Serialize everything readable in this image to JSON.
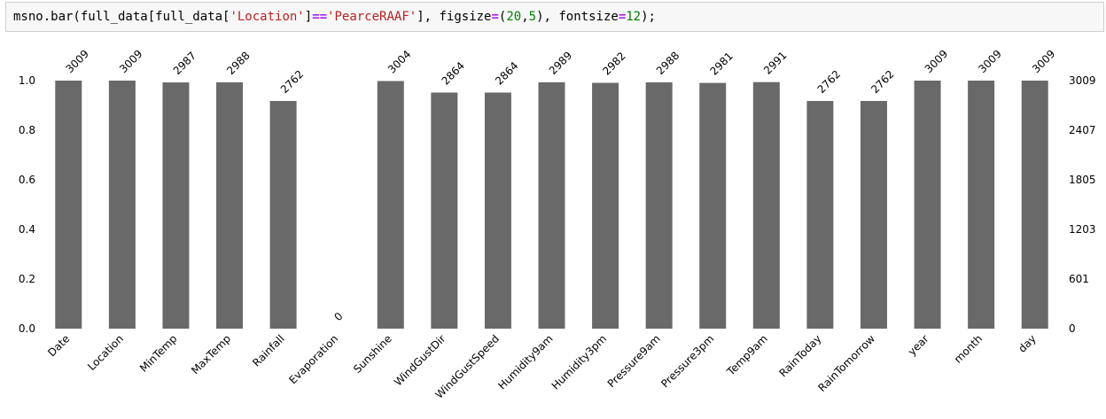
{
  "code_cell": {
    "parts": [
      {
        "text": "msno.bar(full_data[full_data[",
        "kind": "plain"
      },
      {
        "text": "'Location'",
        "kind": "str"
      },
      {
        "text": "]",
        "kind": "plain"
      },
      {
        "text": "==",
        "kind": "op"
      },
      {
        "text": "'PearceRAAF'",
        "kind": "str"
      },
      {
        "text": "], figsize",
        "kind": "plain"
      },
      {
        "text": "=",
        "kind": "op"
      },
      {
        "text": "(",
        "kind": "plain"
      },
      {
        "text": "20",
        "kind": "num"
      },
      {
        "text": ",",
        "kind": "plain"
      },
      {
        "text": "5",
        "kind": "num"
      },
      {
        "text": "), fontsize",
        "kind": "plain"
      },
      {
        "text": "=",
        "kind": "op"
      },
      {
        "text": "12",
        "kind": "num"
      },
      {
        "text": ");",
        "kind": "plain"
      }
    ]
  },
  "chart_data": {
    "type": "bar",
    "categories": [
      "Date",
      "Location",
      "MinTemp",
      "MaxTemp",
      "Rainfall",
      "Evaporation",
      "Sunshine",
      "WindGustDir",
      "WindGustSpeed",
      "Humidity9am",
      "Humidity3pm",
      "Pressure9am",
      "Pressure3pm",
      "Temp9am",
      "RainToday",
      "RainTomorrow",
      "year",
      "month",
      "day"
    ],
    "values": [
      3009,
      3009,
      2987,
      2988,
      2762,
      0,
      3004,
      2864,
      2864,
      2989,
      2982,
      2988,
      2981,
      2991,
      2762,
      2762,
      3009,
      3009,
      3009
    ],
    "data_labels": [
      "3009",
      "3009",
      "2987",
      "2988",
      "2762",
      "0",
      "3004",
      "2864",
      "2864",
      "2989",
      "2982",
      "2988",
      "2981",
      "2991",
      "2762",
      "2762",
      "3009",
      "3009",
      "3009"
    ],
    "left_axis": {
      "ticks": [
        "0.0",
        "0.2",
        "0.4",
        "0.6",
        "0.8",
        "1.0"
      ],
      "range": [
        0,
        1
      ]
    },
    "right_axis": {
      "ticks": [
        "0",
        "601",
        "1203",
        "1805",
        "2407",
        "3009"
      ],
      "range": [
        0,
        3009
      ]
    },
    "bar_color": "#696969",
    "grid": false,
    "legend": "none"
  }
}
